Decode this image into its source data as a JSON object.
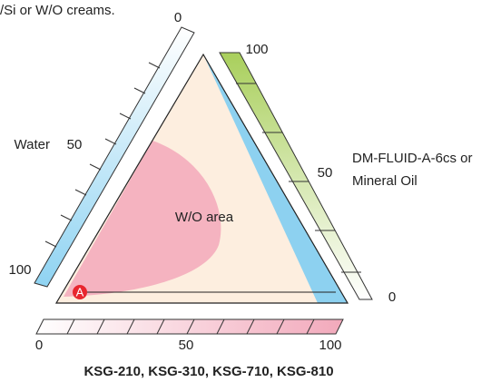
{
  "caption": "/Si or W/O creams.",
  "left_axis": {
    "label": "Water",
    "ticks": [
      "0",
      "50",
      "100"
    ]
  },
  "right_axis": {
    "label_lines": [
      "DM-FLUID-A-6cs or",
      "Mineral Oil"
    ],
    "ticks": [
      "100",
      "50",
      "0"
    ]
  },
  "bottom_axis": {
    "label": "KSG-210, KSG-310, KSG-710, KSG-810",
    "ticks": [
      "0",
      "50",
      "100"
    ]
  },
  "region_label": "W/O area",
  "point_label": "A"
}
